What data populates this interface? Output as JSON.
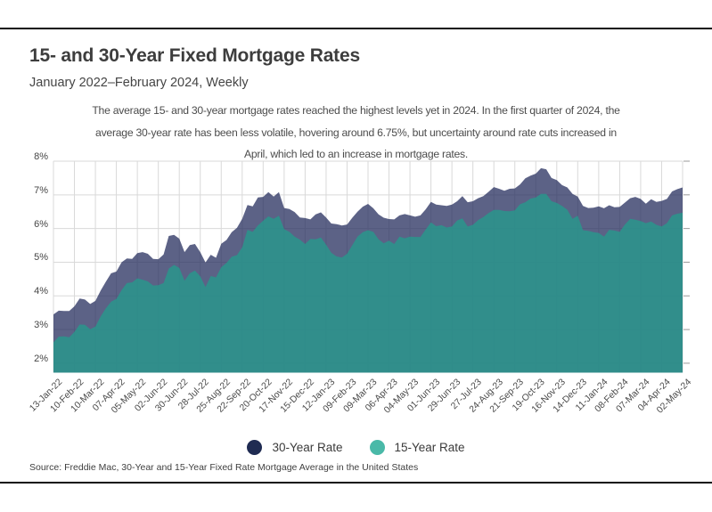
{
  "chart_data": {
    "type": "area",
    "title": "15- and 30-Year Fixed Mortgage Rates",
    "subtitle": "January 2022–February 2024, Weekly",
    "annotation_lines": [
      "The average 15- and 30-year mortgage rates reached the highest levels yet in 2024. In the first quarter of 2024, the",
      "average 30-year rate has been less volatile, hovering around 6.75%, but uncertainty around rate cuts increased in",
      "April, which led to an increase in mortgage rates."
    ],
    "source": "Source: Freddie Mac, 30-Year and 15-Year Fixed Rate Mortgage Average in the United States",
    "legend_position": "bottom",
    "grid": true,
    "ylim": [
      1.72,
      8
    ],
    "y_ticks": [
      2,
      3,
      4,
      5,
      6,
      7,
      8
    ],
    "y_suffix": "%",
    "x_tick_every": 4,
    "x": [
      "13-Jan-22",
      "20-Jan-22",
      "27-Jan-22",
      "03-Feb-22",
      "10-Feb-22",
      "17-Feb-22",
      "24-Feb-22",
      "03-Mar-22",
      "10-Mar-22",
      "17-Mar-22",
      "24-Mar-22",
      "31-Mar-22",
      "07-Apr-22",
      "14-Apr-22",
      "21-Apr-22",
      "28-Apr-22",
      "05-May-22",
      "12-May-22",
      "19-May-22",
      "26-May-22",
      "02-Jun-22",
      "09-Jun-22",
      "16-Jun-22",
      "23-Jun-22",
      "30-Jun-22",
      "07-Jul-22",
      "14-Jul-22",
      "21-Jul-22",
      "28-Jul-22",
      "04-Aug-22",
      "11-Aug-22",
      "18-Aug-22",
      "25-Aug-22",
      "01-Sep-22",
      "08-Sep-22",
      "15-Sep-22",
      "22-Sep-22",
      "29-Sep-22",
      "06-Oct-22",
      "13-Oct-22",
      "20-Oct-22",
      "27-Oct-22",
      "03-Nov-22",
      "10-Nov-22",
      "17-Nov-22",
      "23-Nov-22",
      "01-Dec-22",
      "08-Dec-22",
      "15-Dec-22",
      "22-Dec-22",
      "29-Dec-22",
      "05-Jan-23",
      "12-Jan-23",
      "19-Jan-23",
      "26-Jan-23",
      "02-Feb-23",
      "09-Feb-23",
      "16-Feb-23",
      "23-Feb-23",
      "02-Mar-23",
      "09-Mar-23",
      "16-Mar-23",
      "23-Mar-23",
      "30-Mar-23",
      "06-Apr-23",
      "13-Apr-23",
      "20-Apr-23",
      "27-Apr-23",
      "04-May-23",
      "11-May-23",
      "18-May-23",
      "25-May-23",
      "01-Jun-23",
      "08-Jun-23",
      "15-Jun-23",
      "22-Jun-23",
      "29-Jun-23",
      "06-Jul-23",
      "13-Jul-23",
      "20-Jul-23",
      "27-Jul-23",
      "03-Aug-23",
      "10-Aug-23",
      "17-Aug-23",
      "24-Aug-23",
      "31-Aug-23",
      "07-Sep-23",
      "14-Sep-23",
      "21-Sep-23",
      "28-Sep-23",
      "05-Oct-23",
      "12-Oct-23",
      "19-Oct-23",
      "26-Oct-23",
      "02-Nov-23",
      "09-Nov-23",
      "16-Nov-23",
      "22-Nov-23",
      "30-Nov-23",
      "07-Dec-23",
      "14-Dec-23",
      "21-Dec-23",
      "28-Dec-23",
      "04-Jan-24",
      "11-Jan-24",
      "18-Jan-24",
      "25-Jan-24",
      "01-Feb-24",
      "08-Feb-24",
      "15-Feb-24",
      "22-Feb-24",
      "29-Feb-24",
      "07-Mar-24",
      "14-Mar-24",
      "21-Mar-24",
      "28-Mar-24",
      "04-Apr-24",
      "11-Apr-24",
      "18-Apr-24",
      "25-Apr-24",
      "02-May-24"
    ],
    "series": [
      {
        "name": "30-Year Rate",
        "color": "#1f2b52",
        "fill": "rgba(37,45,94,0.75)",
        "values": [
          3.45,
          3.56,
          3.55,
          3.55,
          3.69,
          3.92,
          3.89,
          3.76,
          3.85,
          4.16,
          4.42,
          4.67,
          4.72,
          5.0,
          5.11,
          5.1,
          5.27,
          5.3,
          5.25,
          5.1,
          5.09,
          5.23,
          5.78,
          5.81,
          5.7,
          5.3,
          5.51,
          5.54,
          5.3,
          4.99,
          5.22,
          5.13,
          5.55,
          5.66,
          5.89,
          6.02,
          6.29,
          6.7,
          6.66,
          6.92,
          6.94,
          7.08,
          6.95,
          7.08,
          6.61,
          6.58,
          6.49,
          6.33,
          6.31,
          6.27,
          6.42,
          6.48,
          6.33,
          6.15,
          6.13,
          6.09,
          6.12,
          6.32,
          6.5,
          6.65,
          6.73,
          6.6,
          6.42,
          6.32,
          6.28,
          6.27,
          6.39,
          6.43,
          6.39,
          6.35,
          6.39,
          6.57,
          6.79,
          6.71,
          6.69,
          6.67,
          6.71,
          6.81,
          6.96,
          6.78,
          6.81,
          6.9,
          6.96,
          7.09,
          7.23,
          7.18,
          7.12,
          7.18,
          7.19,
          7.31,
          7.49,
          7.57,
          7.63,
          7.79,
          7.76,
          7.5,
          7.44,
          7.29,
          7.22,
          7.03,
          6.95,
          6.67,
          6.61,
          6.62,
          6.66,
          6.6,
          6.69,
          6.63,
          6.64,
          6.77,
          6.9,
          6.94,
          6.88,
          6.74,
          6.87,
          6.79,
          6.82,
          6.88,
          7.1,
          7.17,
          7.22
        ]
      },
      {
        "name": "15-Year Rate",
        "color": "#4ab9a8",
        "fill": "rgba(42,148,140,0.87)",
        "values": [
          2.62,
          2.79,
          2.8,
          2.77,
          2.93,
          3.15,
          3.14,
          3.01,
          3.09,
          3.39,
          3.63,
          3.83,
          3.91,
          4.17,
          4.38,
          4.4,
          4.52,
          4.48,
          4.43,
          4.31,
          4.32,
          4.38,
          4.81,
          4.92,
          4.83,
          4.45,
          4.67,
          4.75,
          4.58,
          4.26,
          4.59,
          4.55,
          4.85,
          4.98,
          5.16,
          5.21,
          5.44,
          5.96,
          5.9,
          6.09,
          6.23,
          6.36,
          6.29,
          6.38,
          5.98,
          5.9,
          5.76,
          5.67,
          5.54,
          5.69,
          5.68,
          5.73,
          5.52,
          5.28,
          5.17,
          5.14,
          5.25,
          5.51,
          5.76,
          5.89,
          5.95,
          5.9,
          5.68,
          5.56,
          5.64,
          5.54,
          5.76,
          5.71,
          5.76,
          5.75,
          5.75,
          5.97,
          6.18,
          6.07,
          6.1,
          6.03,
          6.06,
          6.24,
          6.3,
          6.06,
          6.11,
          6.25,
          6.34,
          6.46,
          6.55,
          6.55,
          6.52,
          6.51,
          6.54,
          6.72,
          6.78,
          6.89,
          6.92,
          7.03,
          7.03,
          6.81,
          6.76,
          6.67,
          6.56,
          6.29,
          6.38,
          5.95,
          5.93,
          5.89,
          5.87,
          5.76,
          5.96,
          5.94,
          5.9,
          6.12,
          6.29,
          6.26,
          6.22,
          6.16,
          6.21,
          6.11,
          6.06,
          6.16,
          6.39,
          6.44,
          6.47
        ]
      }
    ]
  }
}
